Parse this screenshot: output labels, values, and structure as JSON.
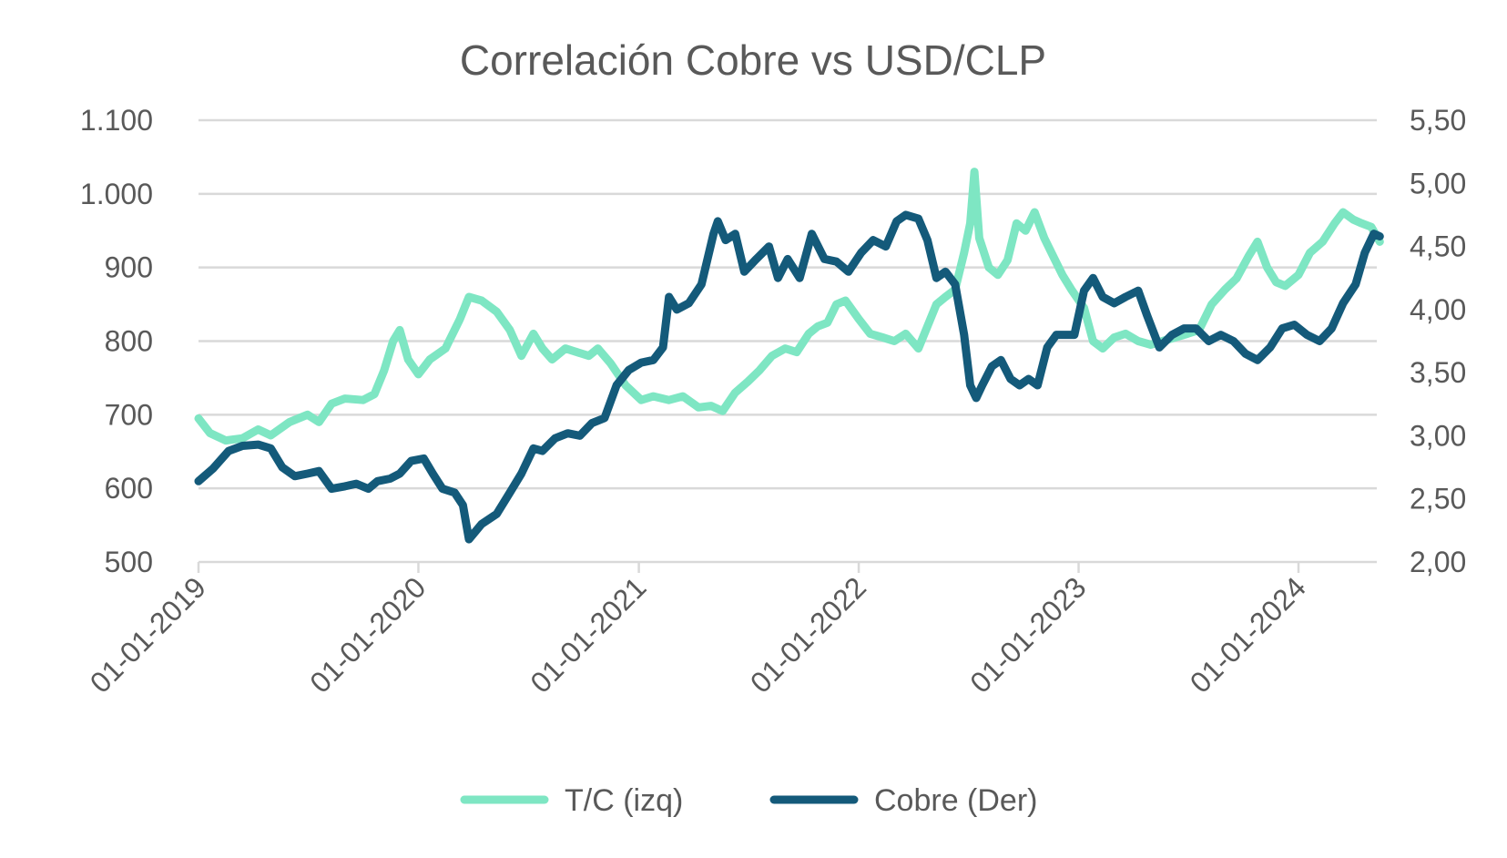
{
  "chart_data": {
    "type": "line",
    "title": "Correlación Cobre vs USD/CLP",
    "xlabel": "",
    "ylabel": "",
    "y2label": "",
    "x_tick_labels": [
      "01-01-2019",
      "01-01-2020",
      "01-01-2021",
      "01-01-2022",
      "01-01-2023",
      "01-01-2024"
    ],
    "y_left_ticks": [
      "500",
      "600",
      "700",
      "800",
      "900",
      "1.000",
      "1.100"
    ],
    "y_right_ticks": [
      "2,00",
      "2,50",
      "3,00",
      "3,50",
      "4,00",
      "4,50",
      "5,00",
      "5,50"
    ],
    "ylim_left": [
      500,
      1100
    ],
    "ylim_right": [
      2.0,
      5.5
    ],
    "xlim": [
      "2019-01-01",
      "2024-05-15"
    ],
    "grid": true,
    "legend_position": "bottom",
    "series": [
      {
        "name": "T/C (izq)",
        "axis": "left",
        "color": "#7ee6c3",
        "points": [
          [
            "2019-01-01",
            695
          ],
          [
            "2019-01-20",
            675
          ],
          [
            "2019-02-15",
            665
          ],
          [
            "2019-03-15",
            668
          ],
          [
            "2019-04-10",
            680
          ],
          [
            "2019-05-01",
            672
          ],
          [
            "2019-06-01",
            690
          ],
          [
            "2019-07-01",
            700
          ],
          [
            "2019-07-20",
            690
          ],
          [
            "2019-08-10",
            715
          ],
          [
            "2019-09-01",
            722
          ],
          [
            "2019-10-01",
            720
          ],
          [
            "2019-10-20",
            728
          ],
          [
            "2019-11-05",
            760
          ],
          [
            "2019-11-20",
            800
          ],
          [
            "2019-12-01",
            815
          ],
          [
            "2019-12-15",
            775
          ],
          [
            "2020-01-01",
            755
          ],
          [
            "2020-01-20",
            775
          ],
          [
            "2020-02-15",
            790
          ],
          [
            "2020-03-10",
            830
          ],
          [
            "2020-03-25",
            860
          ],
          [
            "2020-04-15",
            855
          ],
          [
            "2020-05-10",
            840
          ],
          [
            "2020-06-01",
            815
          ],
          [
            "2020-06-20",
            780
          ],
          [
            "2020-07-10",
            810
          ],
          [
            "2020-07-25",
            790
          ],
          [
            "2020-08-10",
            775
          ],
          [
            "2020-09-01",
            790
          ],
          [
            "2020-09-20",
            785
          ],
          [
            "2020-10-10",
            780
          ],
          [
            "2020-10-25",
            790
          ],
          [
            "2020-11-15",
            770
          ],
          [
            "2020-12-10",
            740
          ],
          [
            "2021-01-05",
            720
          ],
          [
            "2021-01-25",
            725
          ],
          [
            "2021-02-20",
            720
          ],
          [
            "2021-03-15",
            725
          ],
          [
            "2021-04-10",
            710
          ],
          [
            "2021-05-01",
            712
          ],
          [
            "2021-05-20",
            705
          ],
          [
            "2021-06-10",
            730
          ],
          [
            "2021-07-01",
            745
          ],
          [
            "2021-07-20",
            760
          ],
          [
            "2021-08-10",
            780
          ],
          [
            "2021-09-01",
            790
          ],
          [
            "2021-09-20",
            785
          ],
          [
            "2021-10-10",
            810
          ],
          [
            "2021-10-25",
            820
          ],
          [
            "2021-11-10",
            825
          ],
          [
            "2021-11-25",
            850
          ],
          [
            "2021-12-10",
            855
          ],
          [
            "2022-01-01",
            830
          ],
          [
            "2022-01-20",
            810
          ],
          [
            "2022-02-10",
            805
          ],
          [
            "2022-03-01",
            800
          ],
          [
            "2022-03-20",
            810
          ],
          [
            "2022-04-10",
            790
          ],
          [
            "2022-04-25",
            820
          ],
          [
            "2022-05-10",
            850
          ],
          [
            "2022-05-25",
            860
          ],
          [
            "2022-06-10",
            870
          ],
          [
            "2022-06-25",
            920
          ],
          [
            "2022-07-05",
            960
          ],
          [
            "2022-07-12",
            1030
          ],
          [
            "2022-07-20",
            940
          ],
          [
            "2022-08-05",
            900
          ],
          [
            "2022-08-20",
            890
          ],
          [
            "2022-09-05",
            910
          ],
          [
            "2022-09-20",
            960
          ],
          [
            "2022-10-05",
            950
          ],
          [
            "2022-10-20",
            975
          ],
          [
            "2022-11-05",
            940
          ],
          [
            "2022-11-20",
            915
          ],
          [
            "2022-12-05",
            890
          ],
          [
            "2022-12-20",
            870
          ],
          [
            "2023-01-10",
            845
          ],
          [
            "2023-01-25",
            800
          ],
          [
            "2023-02-10",
            790
          ],
          [
            "2023-03-01",
            805
          ],
          [
            "2023-03-20",
            810
          ],
          [
            "2023-04-10",
            800
          ],
          [
            "2023-05-01",
            795
          ],
          [
            "2023-05-20",
            800
          ],
          [
            "2023-06-10",
            805
          ],
          [
            "2023-07-01",
            810
          ],
          [
            "2023-07-20",
            815
          ],
          [
            "2023-08-10",
            850
          ],
          [
            "2023-09-01",
            870
          ],
          [
            "2023-09-20",
            885
          ],
          [
            "2023-10-10",
            915
          ],
          [
            "2023-10-25",
            935
          ],
          [
            "2023-11-10",
            900
          ],
          [
            "2023-11-25",
            880
          ],
          [
            "2023-12-10",
            875
          ],
          [
            "2024-01-01",
            890
          ],
          [
            "2024-01-20",
            920
          ],
          [
            "2024-02-10",
            935
          ],
          [
            "2024-03-01",
            960
          ],
          [
            "2024-03-15",
            975
          ],
          [
            "2024-04-01",
            965
          ],
          [
            "2024-04-15",
            960
          ],
          [
            "2024-05-01",
            955
          ],
          [
            "2024-05-15",
            935
          ]
        ]
      },
      {
        "name": "Cobre (Der)",
        "axis": "right",
        "color": "#145a7a",
        "points": [
          [
            "2019-01-01",
            2.64
          ],
          [
            "2019-01-25",
            2.74
          ],
          [
            "2019-02-20",
            2.88
          ],
          [
            "2019-03-15",
            2.92
          ],
          [
            "2019-04-10",
            2.93
          ],
          [
            "2019-05-01",
            2.9
          ],
          [
            "2019-05-20",
            2.75
          ],
          [
            "2019-06-10",
            2.68
          ],
          [
            "2019-07-01",
            2.7
          ],
          [
            "2019-07-20",
            2.72
          ],
          [
            "2019-08-10",
            2.58
          ],
          [
            "2019-09-01",
            2.6
          ],
          [
            "2019-09-20",
            2.62
          ],
          [
            "2019-10-10",
            2.58
          ],
          [
            "2019-10-25",
            2.64
          ],
          [
            "2019-11-15",
            2.66
          ],
          [
            "2019-12-01",
            2.7
          ],
          [
            "2019-12-20",
            2.8
          ],
          [
            "2020-01-10",
            2.82
          ],
          [
            "2020-01-25",
            2.7
          ],
          [
            "2020-02-10",
            2.58
          ],
          [
            "2020-03-01",
            2.55
          ],
          [
            "2020-03-15",
            2.45
          ],
          [
            "2020-03-25",
            2.18
          ],
          [
            "2020-04-15",
            2.3
          ],
          [
            "2020-05-10",
            2.38
          ],
          [
            "2020-06-01",
            2.55
          ],
          [
            "2020-06-20",
            2.7
          ],
          [
            "2020-07-10",
            2.9
          ],
          [
            "2020-07-25",
            2.88
          ],
          [
            "2020-08-15",
            2.98
          ],
          [
            "2020-09-05",
            3.02
          ],
          [
            "2020-09-25",
            3.0
          ],
          [
            "2020-10-15",
            3.1
          ],
          [
            "2020-11-05",
            3.14
          ],
          [
            "2020-11-25",
            3.4
          ],
          [
            "2020-12-15",
            3.52
          ],
          [
            "2021-01-05",
            3.58
          ],
          [
            "2021-01-25",
            3.6
          ],
          [
            "2021-02-10",
            3.7
          ],
          [
            "2021-02-20",
            4.1
          ],
          [
            "2021-03-05",
            4.0
          ],
          [
            "2021-03-25",
            4.05
          ],
          [
            "2021-04-15",
            4.2
          ],
          [
            "2021-05-05",
            4.6
          ],
          [
            "2021-05-12",
            4.7
          ],
          [
            "2021-05-25",
            4.55
          ],
          [
            "2021-06-10",
            4.6
          ],
          [
            "2021-06-25",
            4.3
          ],
          [
            "2021-07-15",
            4.4
          ],
          [
            "2021-08-05",
            4.5
          ],
          [
            "2021-08-20",
            4.25
          ],
          [
            "2021-09-05",
            4.4
          ],
          [
            "2021-09-25",
            4.25
          ],
          [
            "2021-10-15",
            4.6
          ],
          [
            "2021-11-05",
            4.4
          ],
          [
            "2021-11-25",
            4.38
          ],
          [
            "2021-12-15",
            4.3
          ],
          [
            "2022-01-05",
            4.45
          ],
          [
            "2022-01-25",
            4.55
          ],
          [
            "2022-02-15",
            4.5
          ],
          [
            "2022-03-05",
            4.7
          ],
          [
            "2022-03-20",
            4.75
          ],
          [
            "2022-04-10",
            4.72
          ],
          [
            "2022-04-25",
            4.55
          ],
          [
            "2022-05-10",
            4.25
          ],
          [
            "2022-05-25",
            4.3
          ],
          [
            "2022-06-10",
            4.2
          ],
          [
            "2022-06-25",
            3.8
          ],
          [
            "2022-07-05",
            3.4
          ],
          [
            "2022-07-15",
            3.3
          ],
          [
            "2022-07-25",
            3.4
          ],
          [
            "2022-08-10",
            3.55
          ],
          [
            "2022-08-25",
            3.6
          ],
          [
            "2022-09-10",
            3.45
          ],
          [
            "2022-09-25",
            3.4
          ],
          [
            "2022-10-10",
            3.45
          ],
          [
            "2022-10-25",
            3.4
          ],
          [
            "2022-11-10",
            3.7
          ],
          [
            "2022-11-25",
            3.8
          ],
          [
            "2022-12-10",
            3.8
          ],
          [
            "2022-12-25",
            3.8
          ],
          [
            "2023-01-10",
            4.15
          ],
          [
            "2023-01-25",
            4.25
          ],
          [
            "2023-02-10",
            4.1
          ],
          [
            "2023-03-01",
            4.05
          ],
          [
            "2023-03-20",
            4.1
          ],
          [
            "2023-04-10",
            4.15
          ],
          [
            "2023-04-25",
            3.95
          ],
          [
            "2023-05-15",
            3.7
          ],
          [
            "2023-06-05",
            3.8
          ],
          [
            "2023-06-25",
            3.85
          ],
          [
            "2023-07-15",
            3.85
          ],
          [
            "2023-08-05",
            3.75
          ],
          [
            "2023-08-25",
            3.8
          ],
          [
            "2023-09-15",
            3.75
          ],
          [
            "2023-10-05",
            3.65
          ],
          [
            "2023-10-25",
            3.6
          ],
          [
            "2023-11-15",
            3.7
          ],
          [
            "2023-12-05",
            3.85
          ],
          [
            "2023-12-25",
            3.88
          ],
          [
            "2024-01-15",
            3.8
          ],
          [
            "2024-02-05",
            3.75
          ],
          [
            "2024-02-25",
            3.85
          ],
          [
            "2024-03-15",
            4.05
          ],
          [
            "2024-04-05",
            4.2
          ],
          [
            "2024-04-20",
            4.45
          ],
          [
            "2024-05-05",
            4.6
          ],
          [
            "2024-05-15",
            4.58
          ]
        ]
      }
    ]
  }
}
